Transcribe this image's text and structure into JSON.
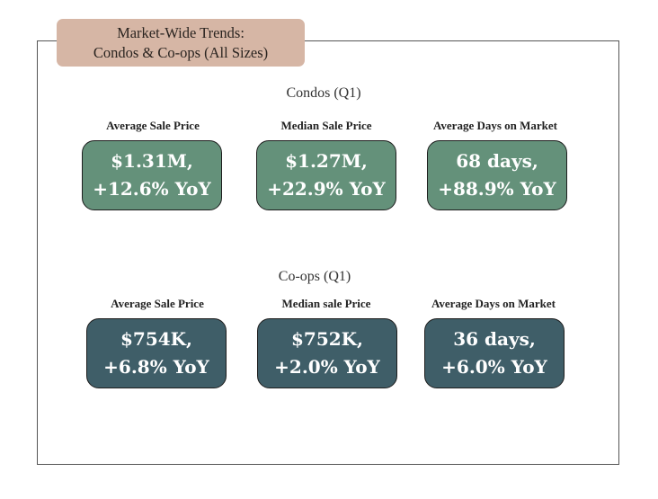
{
  "header": {
    "title_line1": "Market-Wide Trends:",
    "title_line2": "Condos & Co-ops (All Sizes)"
  },
  "colors": {
    "header_bg": "#d6b6a5",
    "condo_card": "#64917a",
    "coop_card": "#3f5e68"
  },
  "condos": {
    "title": "Condos (Q1)",
    "metrics": [
      {
        "label": "Average Sale Price",
        "line1": "$1.31M,",
        "line2": "+12.6% YoY"
      },
      {
        "label": "Median Sale Price",
        "line1": "$1.27M,",
        "line2": "+22.9% YoY"
      },
      {
        "label": "Average Days on Market",
        "line1": "68 days,",
        "line2": "+88.9% YoY"
      }
    ]
  },
  "coops": {
    "title": "Co-ops (Q1)",
    "metrics": [
      {
        "label": "Average Sale Price",
        "line1": "$754K,",
        "line2": "+6.8% YoY"
      },
      {
        "label": "Median sale Price",
        "line1": "$752K,",
        "line2": "+2.0% YoY"
      },
      {
        "label": "Average Days on Market",
        "line1": "36 days,",
        "line2": "+6.0% YoY"
      }
    ]
  }
}
